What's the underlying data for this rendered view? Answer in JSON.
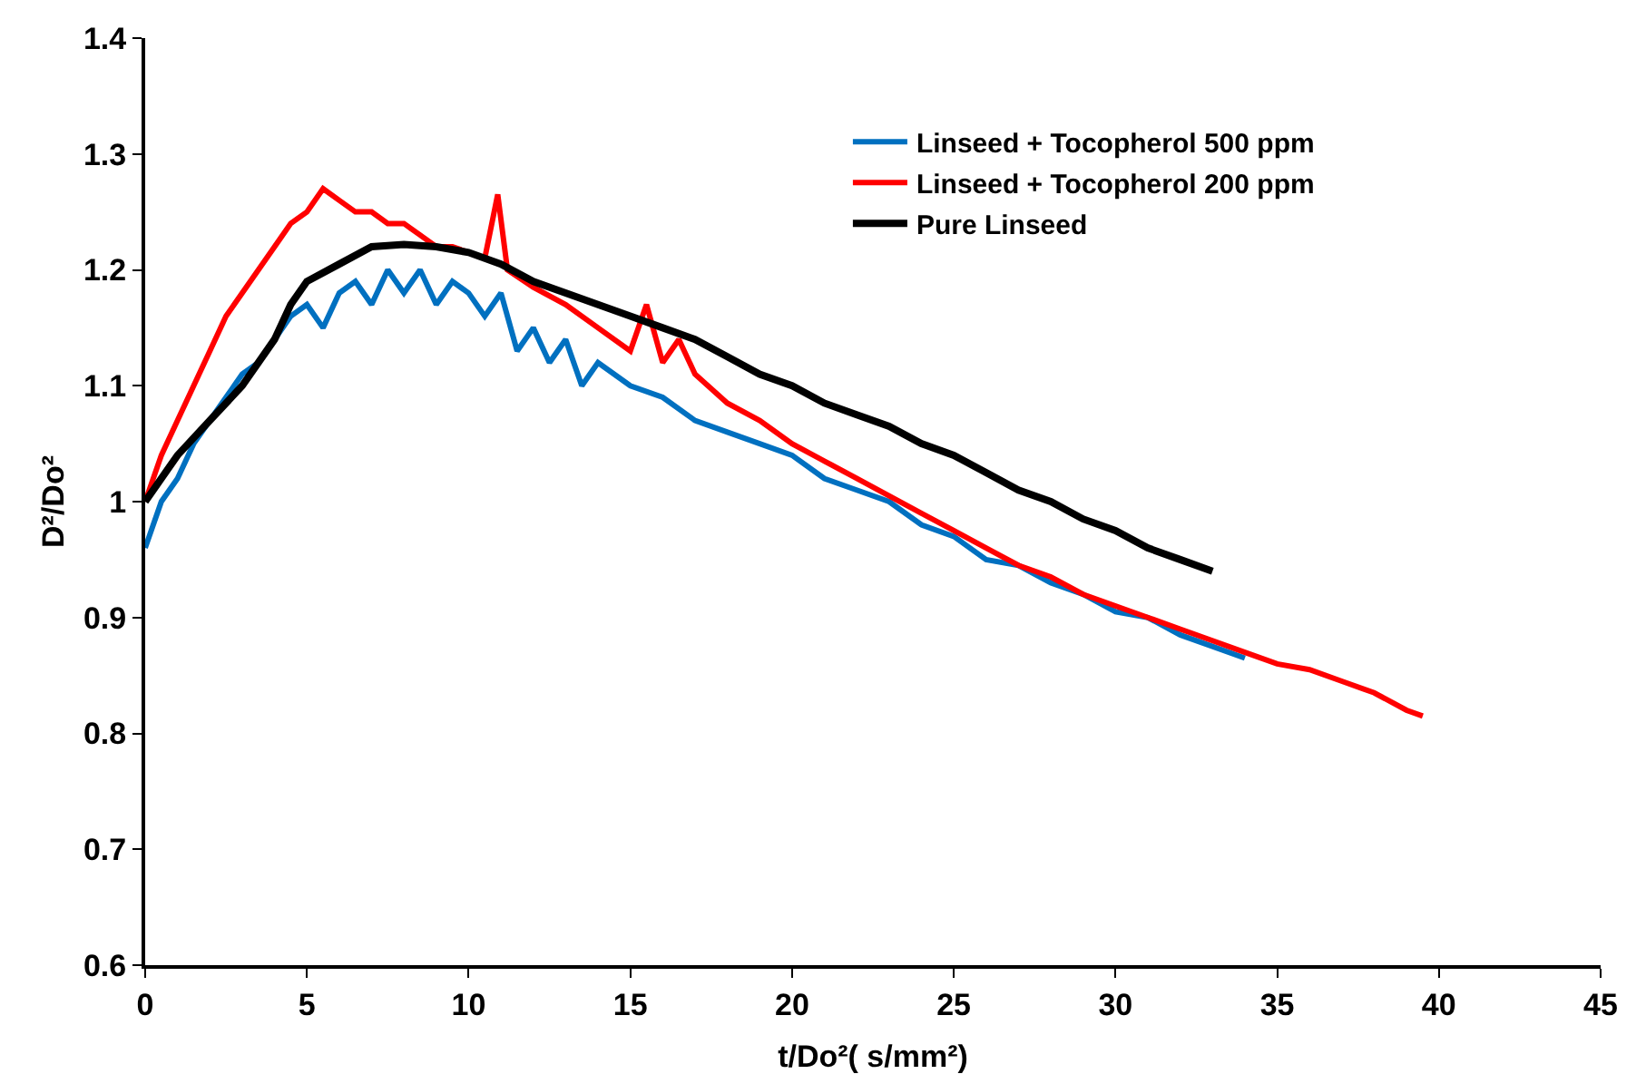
{
  "chart_data": {
    "type": "line",
    "xlabel": "t/Do²( s/mm²)",
    "ylabel": "D²/Do²",
    "xlim": [
      0,
      45
    ],
    "xticks": [
      0,
      5,
      10,
      15,
      20,
      25,
      30,
      35,
      40,
      45
    ],
    "ylim": [
      0.6,
      1.4
    ],
    "yticks": [
      0.6,
      0.7,
      0.8,
      0.9,
      1,
      1.1,
      1.2,
      1.3,
      1.4
    ],
    "grid": false,
    "legend": "top right",
    "marker": "none",
    "line_style": "solid",
    "series": [
      {
        "name": "Linseed + Tocopherol 500 ppm",
        "color": "#0070c0",
        "x": [
          0,
          0.5,
          1,
          1.5,
          2,
          2.5,
          3,
          3.5,
          4,
          4.5,
          5,
          5.5,
          6,
          6.5,
          7,
          7.5,
          8,
          8.5,
          9,
          9.5,
          10,
          10.5,
          11,
          11.5,
          12,
          12.5,
          13,
          13.5,
          14,
          15,
          16,
          17,
          18,
          19,
          20,
          21,
          22,
          23,
          24,
          25,
          26,
          27,
          28,
          29,
          30,
          31,
          32,
          33,
          34
        ],
        "values": [
          0.96,
          1.0,
          1.02,
          1.05,
          1.07,
          1.09,
          1.11,
          1.12,
          1.14,
          1.16,
          1.17,
          1.15,
          1.18,
          1.19,
          1.17,
          1.2,
          1.18,
          1.2,
          1.17,
          1.19,
          1.18,
          1.16,
          1.18,
          1.13,
          1.15,
          1.12,
          1.14,
          1.1,
          1.12,
          1.1,
          1.09,
          1.07,
          1.06,
          1.05,
          1.04,
          1.02,
          1.01,
          1.0,
          0.98,
          0.97,
          0.95,
          0.945,
          0.93,
          0.92,
          0.905,
          0.9,
          0.885,
          0.875,
          0.865
        ]
      },
      {
        "name": "Linseed + Tocopherol 200 ppm",
        "color": "#ff0000",
        "x": [
          0,
          0.5,
          1,
          1.5,
          2,
          2.5,
          3,
          3.5,
          4,
          4.5,
          5,
          5.5,
          6,
          6.5,
          7,
          7.5,
          8,
          8.5,
          9,
          9.5,
          10,
          10.5,
          10.9,
          11.2,
          12,
          13,
          14,
          15,
          15.5,
          16,
          16.5,
          17,
          18,
          19,
          20,
          21,
          22,
          23,
          24,
          25,
          26,
          27,
          28,
          29,
          30,
          31,
          32,
          33,
          34,
          35,
          36,
          37,
          38,
          39,
          39.5
        ],
        "values": [
          1.0,
          1.04,
          1.07,
          1.1,
          1.13,
          1.16,
          1.18,
          1.2,
          1.22,
          1.24,
          1.25,
          1.27,
          1.26,
          1.25,
          1.25,
          1.24,
          1.24,
          1.23,
          1.22,
          1.22,
          1.215,
          1.21,
          1.265,
          1.2,
          1.185,
          1.17,
          1.15,
          1.13,
          1.17,
          1.12,
          1.14,
          1.11,
          1.085,
          1.07,
          1.05,
          1.035,
          1.02,
          1.005,
          0.99,
          0.975,
          0.96,
          0.945,
          0.935,
          0.92,
          0.91,
          0.9,
          0.89,
          0.88,
          0.87,
          0.86,
          0.855,
          0.845,
          0.835,
          0.82,
          0.815
        ]
      },
      {
        "name": "Pure Linseed",
        "color": "#000000",
        "x": [
          0,
          1,
          2,
          3,
          4,
          4.5,
          5,
          6,
          7,
          8,
          9,
          10,
          11,
          12,
          13,
          14,
          15,
          16,
          17,
          18,
          19,
          20,
          21,
          22,
          23,
          24,
          25,
          26,
          27,
          28,
          29,
          30,
          31,
          32,
          33
        ],
        "values": [
          1.0,
          1.04,
          1.07,
          1.1,
          1.14,
          1.17,
          1.19,
          1.205,
          1.22,
          1.222,
          1.22,
          1.215,
          1.205,
          1.19,
          1.18,
          1.17,
          1.16,
          1.15,
          1.14,
          1.125,
          1.11,
          1.1,
          1.085,
          1.075,
          1.065,
          1.05,
          1.04,
          1.025,
          1.01,
          1.0,
          0.985,
          0.975,
          0.96,
          0.95,
          0.94
        ]
      }
    ]
  }
}
